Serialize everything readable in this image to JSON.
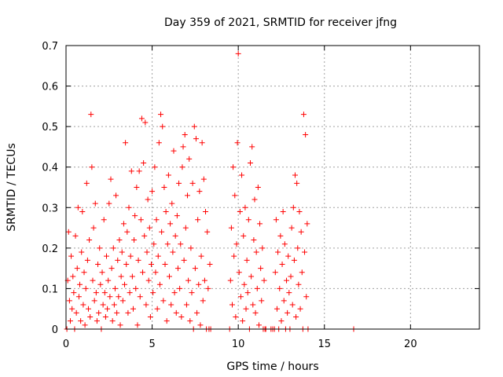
{
  "chart_data": {
    "type": "scatter",
    "title": "Day 359 of 2021, SRMTID for receiver jfng",
    "xlabel": "GPS time / hours",
    "ylabel": "SRMTID / TECUs",
    "xlim": [
      0,
      24
    ],
    "ylim": [
      0,
      0.7
    ],
    "xticks": [
      0,
      5,
      10,
      15,
      20
    ],
    "xtick_labels": [
      "0",
      "5",
      "10",
      "15",
      "20"
    ],
    "yticks": [
      0,
      0.1,
      0.2,
      0.3,
      0.4,
      0.5,
      0.6,
      0.7
    ],
    "ytick_labels": [
      "0",
      "0.1",
      "0.2",
      "0.3",
      "0.4",
      "0.5",
      "0.6",
      "0.7"
    ],
    "grid": true,
    "marker": "+",
    "color": "#ff0000",
    "series": [
      {
        "name": "SRMTID",
        "points": [
          [
            0.05,
            0.0
          ],
          [
            0.1,
            0.12
          ],
          [
            0.15,
            0.24
          ],
          [
            0.2,
            0.07
          ],
          [
            0.25,
            0.02
          ],
          [
            0.3,
            0.18
          ],
          [
            0.35,
            0.05
          ],
          [
            0.4,
            0.13
          ],
          [
            0.45,
            0.09
          ],
          [
            0.5,
            0.0
          ],
          [
            0.55,
            0.23
          ],
          [
            0.6,
            0.04
          ],
          [
            0.65,
            0.15
          ],
          [
            0.7,
            0.3
          ],
          [
            0.75,
            0.08
          ],
          [
            0.8,
            0.11
          ],
          [
            0.85,
            0.02
          ],
          [
            0.9,
            0.19
          ],
          [
            0.95,
            0.29
          ],
          [
            1.0,
            0.06
          ],
          [
            1.05,
            0.14
          ],
          [
            1.1,
            0.01
          ],
          [
            1.15,
            0.1
          ],
          [
            1.2,
            0.36
          ],
          [
            1.25,
            0.17
          ],
          [
            1.3,
            0.05
          ],
          [
            1.35,
            0.22
          ],
          [
            1.4,
            0.03
          ],
          [
            1.45,
            0.53
          ],
          [
            1.5,
            0.4
          ],
          [
            1.55,
            0.12
          ],
          [
            1.6,
            0.25
          ],
          [
            1.65,
            0.07
          ],
          [
            1.7,
            0.31
          ],
          [
            1.75,
            0.09
          ],
          [
            1.8,
            0.02
          ],
          [
            1.85,
            0.16
          ],
          [
            1.9,
            0.04
          ],
          [
            1.95,
            0.2
          ],
          [
            2.0,
            0.11
          ],
          [
            2.05,
            0.0
          ],
          [
            2.1,
            0.14
          ],
          [
            2.15,
            0.06
          ],
          [
            2.2,
            0.27
          ],
          [
            2.25,
            0.09
          ],
          [
            2.3,
            0.03
          ],
          [
            2.35,
            0.18
          ],
          [
            2.4,
            0.05
          ],
          [
            2.45,
            0.12
          ],
          [
            2.5,
            0.31
          ],
          [
            2.55,
            0.08
          ],
          [
            2.6,
            0.37
          ],
          [
            2.65,
            0.15
          ],
          [
            2.7,
            0.02
          ],
          [
            2.75,
            0.2
          ],
          [
            2.8,
            0.06
          ],
          [
            2.85,
            0.1
          ],
          [
            2.9,
            0.33
          ],
          [
            2.95,
            0.04
          ],
          [
            3.0,
            0.17
          ],
          [
            3.05,
            0.08
          ],
          [
            3.1,
            0.22
          ],
          [
            3.15,
            0.01
          ],
          [
            3.2,
            0.13
          ],
          [
            3.25,
            0.19
          ],
          [
            3.3,
            0.07
          ],
          [
            3.35,
            0.26
          ],
          [
            3.4,
            0.11
          ],
          [
            3.45,
            0.46
          ],
          [
            3.5,
            0.16
          ],
          [
            3.55,
            0.24
          ],
          [
            3.6,
            0.04
          ],
          [
            3.65,
            0.3
          ],
          [
            3.7,
            0.09
          ],
          [
            3.75,
            0.18
          ],
          [
            3.8,
            0.39
          ],
          [
            3.85,
            0.13
          ],
          [
            3.9,
            0.05
          ],
          [
            3.95,
            0.22
          ],
          [
            4.0,
            0.28
          ],
          [
            4.05,
            0.1
          ],
          [
            4.1,
            0.35
          ],
          [
            4.15,
            0.01
          ],
          [
            4.2,
            0.17
          ],
          [
            4.25,
            0.39
          ],
          [
            4.3,
            0.08
          ],
          [
            4.35,
            0.27
          ],
          [
            4.4,
            0.52
          ],
          [
            4.45,
            0.14
          ],
          [
            4.5,
            0.41
          ],
          [
            4.55,
            0.23
          ],
          [
            4.6,
            0.51
          ],
          [
            4.65,
            0.06
          ],
          [
            4.7,
            0.19
          ],
          [
            4.75,
            0.32
          ],
          [
            4.8,
            0.12
          ],
          [
            4.85,
            0.25
          ],
          [
            4.9,
            0.03
          ],
          [
            4.95,
            0.16
          ],
          [
            5.0,
            0.34
          ],
          [
            5.05,
            0.09
          ],
          [
            5.1,
            0.21
          ],
          [
            5.15,
            0.4
          ],
          [
            5.2,
            0.14
          ],
          [
            5.25,
            0.27
          ],
          [
            5.3,
            0.05
          ],
          [
            5.35,
            0.18
          ],
          [
            5.4,
            0.46
          ],
          [
            5.45,
            0.11
          ],
          [
            5.5,
            0.53
          ],
          [
            5.55,
            0.24
          ],
          [
            5.6,
            0.5
          ],
          [
            5.65,
            0.07
          ],
          [
            5.7,
            0.35
          ],
          [
            5.75,
            0.16
          ],
          [
            5.8,
            0.29
          ],
          [
            5.85,
            0.02
          ],
          [
            5.9,
            0.21
          ],
          [
            5.95,
            0.38
          ],
          [
            6.0,
            0.13
          ],
          [
            6.05,
            0.26
          ],
          [
            6.1,
            0.06
          ],
          [
            6.15,
            0.31
          ],
          [
            6.2,
            0.19
          ],
          [
            6.25,
            0.44
          ],
          [
            6.3,
            0.09
          ],
          [
            6.35,
            0.23
          ],
          [
            6.4,
            0.04
          ],
          [
            6.45,
            0.28
          ],
          [
            6.5,
            0.15
          ],
          [
            6.55,
            0.36
          ],
          [
            6.6,
            0.1
          ],
          [
            6.65,
            0.21
          ],
          [
            6.7,
            0.03
          ],
          [
            6.75,
            0.4
          ],
          [
            6.8,
            0.45
          ],
          [
            6.85,
            0.17
          ],
          [
            6.9,
            0.48
          ],
          [
            6.95,
            0.25
          ],
          [
            7.0,
            0.06
          ],
          [
            7.05,
            0.33
          ],
          [
            7.1,
            0.12
          ],
          [
            7.15,
            0.42
          ],
          [
            7.2,
            0.02
          ],
          [
            7.25,
            0.2
          ],
          [
            7.3,
            0.09
          ],
          [
            7.35,
            0.36
          ],
          [
            7.4,
            0.0
          ],
          [
            7.45,
            0.5
          ],
          [
            7.5,
            0.15
          ],
          [
            7.55,
            0.47
          ],
          [
            7.6,
            0.04
          ],
          [
            7.65,
            0.27
          ],
          [
            7.7,
            0.11
          ],
          [
            7.75,
            0.34
          ],
          [
            7.8,
            0.01
          ],
          [
            7.85,
            0.18
          ],
          [
            7.9,
            0.46
          ],
          [
            7.95,
            0.07
          ],
          [
            8.0,
            0.37
          ],
          [
            8.05,
            0.12
          ],
          [
            8.1,
            0.29
          ],
          [
            8.15,
            0.0
          ],
          [
            8.2,
            0.24
          ],
          [
            8.25,
            0.1
          ],
          [
            8.3,
            0.0
          ],
          [
            8.35,
            0.16
          ],
          [
            8.4,
            0.0
          ],
          [
            9.5,
            0.0
          ],
          [
            9.55,
            0.12
          ],
          [
            9.6,
            0.25
          ],
          [
            9.65,
            0.06
          ],
          [
            9.7,
            0.4
          ],
          [
            9.75,
            0.18
          ],
          [
            9.8,
            0.33
          ],
          [
            9.85,
            0.03
          ],
          [
            9.9,
            0.21
          ],
          [
            9.95,
            0.46
          ],
          [
            10.0,
            0.68
          ],
          [
            10.05,
            0.14
          ],
          [
            10.1,
            0.29
          ],
          [
            10.15,
            0.08
          ],
          [
            10.2,
            0.38
          ],
          [
            10.25,
            0.02
          ],
          [
            10.3,
            0.23
          ],
          [
            10.35,
            0.11
          ],
          [
            10.4,
            0.3
          ],
          [
            10.45,
            0.05
          ],
          [
            10.5,
            0.17
          ],
          [
            10.55,
            0.09
          ],
          [
            10.6,
            0.27
          ],
          [
            10.65,
            0.0
          ],
          [
            10.7,
            0.41
          ],
          [
            10.75,
            0.13
          ],
          [
            10.8,
            0.45
          ],
          [
            10.85,
            0.06
          ],
          [
            10.9,
            0.22
          ],
          [
            10.95,
            0.32
          ],
          [
            11.0,
            0.04
          ],
          [
            11.05,
            0.19
          ],
          [
            11.1,
            0.1
          ],
          [
            11.15,
            0.35
          ],
          [
            11.2,
            0.01
          ],
          [
            11.25,
            0.26
          ],
          [
            11.3,
            0.15
          ],
          [
            11.35,
            0.07
          ],
          [
            11.4,
            0.2
          ],
          [
            11.45,
            0.0
          ],
          [
            11.5,
            0.12
          ],
          [
            11.55,
            0.0
          ],
          [
            11.6,
            0.0
          ],
          [
            11.9,
            0.0
          ],
          [
            12.0,
            0.0
          ],
          [
            12.1,
            0.0
          ],
          [
            12.15,
            0.14
          ],
          [
            12.2,
            0.27
          ],
          [
            12.25,
            0.05
          ],
          [
            12.3,
            0.19
          ],
          [
            12.35,
            0.0
          ],
          [
            12.4,
            0.1
          ],
          [
            12.45,
            0.23
          ],
          [
            12.5,
            0.02
          ],
          [
            12.55,
            0.16
          ],
          [
            12.6,
            0.29
          ],
          [
            12.65,
            0.07
          ],
          [
            12.7,
            0.21
          ],
          [
            12.75,
            0.0
          ],
          [
            12.8,
            0.12
          ],
          [
            12.85,
            0.04
          ],
          [
            12.9,
            0.18
          ],
          [
            12.95,
            0.09
          ],
          [
            13.0,
            0.0
          ],
          [
            13.05,
            0.13
          ],
          [
            13.1,
            0.25
          ],
          [
            13.15,
            0.06
          ],
          [
            13.2,
            0.3
          ],
          [
            13.25,
            0.17
          ],
          [
            13.3,
            0.38
          ],
          [
            13.35,
            0.03
          ],
          [
            13.4,
            0.36
          ],
          [
            13.45,
            0.2
          ],
          [
            13.5,
            0.11
          ],
          [
            13.55,
            0.29
          ],
          [
            13.6,
            0.05
          ],
          [
            13.65,
            0.24
          ],
          [
            13.7,
            0.14
          ],
          [
            13.75,
            0.0
          ],
          [
            13.8,
            0.53
          ],
          [
            13.85,
            0.19
          ],
          [
            13.9,
            0.48
          ],
          [
            13.95,
            0.08
          ],
          [
            14.0,
            0.26
          ],
          [
            14.05,
            0.0
          ],
          [
            16.7,
            0.0
          ]
        ]
      }
    ]
  }
}
